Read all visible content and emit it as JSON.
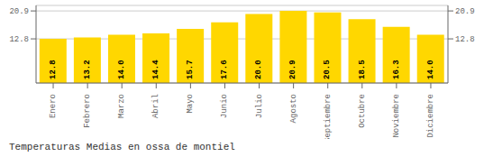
{
  "chart_data": {
    "type": "bar",
    "title": "Temperaturas Medias en ossa de montiel",
    "categories": [
      "Enero",
      "Febrero",
      "Marzo",
      "Abril",
      "Mayo",
      "Junio",
      "Julio",
      "Agosto",
      "Septiembre",
      "Octubre",
      "Noviembre",
      "Diciembre"
    ],
    "values": [
      12.8,
      13.2,
      14.0,
      14.4,
      15.7,
      17.6,
      20.0,
      20.9,
      20.5,
      18.5,
      16.3,
      14.0
    ],
    "value_labels": [
      "12.8",
      "13.2",
      "14.0",
      "14.4",
      "15.7",
      "17.6",
      "20.0",
      "20.9",
      "20.5",
      "18.5",
      "16.3",
      "14.0"
    ],
    "color": "#FFD700",
    "ylim": [
      0,
      22.5
    ],
    "yticks": [
      12.8,
      20.9
    ],
    "y2lim": [
      0,
      22.5
    ],
    "y2ticks": [
      12.8,
      20.9
    ],
    "grid": true,
    "data_labels": true
  }
}
